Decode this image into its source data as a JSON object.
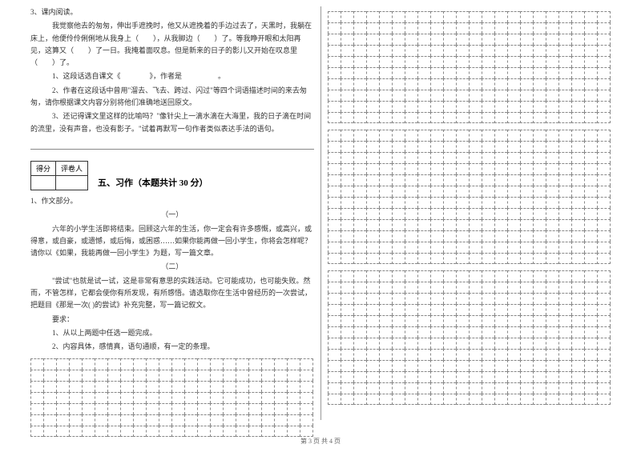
{
  "q3": {
    "title": "3、课内阅读。",
    "p1": "我觉察他去的匆匆，伸出手遮挽时，他又从遮挽着的手边过去了，天黑时，我躺在床上，他便伶伶俐俐地从我身上（　　），从我脚边（　　）了。等我睁开眼和太阳再见，这算又（　　）了一日。我掩着面叹息。但是新来的日子的影儿又开始在叹息里（　　）了。",
    "q1": "1、这段话选自课文《　　　　》，作者是　　　　　。",
    "q2": "2、作者在这段话中曾用\"溜去、飞去、跨过、闪过\"等四个词语描述时间的来去匆匆，请你根据课文内容分别将他们准确地送回原文。",
    "q3a": "3、还记得课文里这样的比喻吗？\"像针尖上一滴水滴在大海里，我的日子滴在时间的流里，没有声音，也没有影子。\"试着再默写一句作者类似表达手法的语句。"
  },
  "score": {
    "c1": "得分",
    "c2": "评卷人"
  },
  "section5": "五、习作（本题共计 30 分）",
  "essay": {
    "h": "1、作文部分。",
    "t1": "（一）",
    "p1": "六年的小学生活即将结束。回顾这六年的生活，你一定会有许多感慨，或高兴，或得意，或自豪，或遗憾，或后悔，或困惑……如果你能再做一回小学生，你将会怎样呢？请你以《如果，我能再做一回小学生》为题，写一篇文章。",
    "t2": "（二）",
    "p2": "\"尝试\"也就是试一试，这是非常有意思的实践活动。它可能成功，也可能失败。然而，不管怎样，它都会使你有所发现，有所感悟。请选取你在生活中曾经历的一次尝试，把题目《那是一次( )的尝试》补充完整，写一篇记叙文。",
    "req": "要求：",
    "r1": "1、从以上两题中任选一题完成。",
    "r2": "2、内容具体，感情真，语句通顺，有一定的条理。"
  },
  "gridCols": 22,
  "gridRowsL": 7,
  "gridRowsR1": 10,
  "gridRowsR2": 12,
  "gridRowsR3": 12,
  "footer": "第 3 页 共 4 页"
}
